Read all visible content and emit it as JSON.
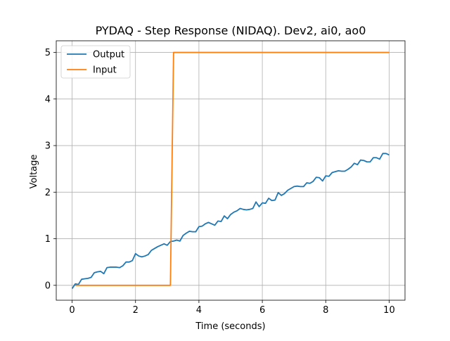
{
  "chart_data": {
    "type": "line",
    "title": "PYDAQ - Step Response (NIDAQ). Dev2, ai0, ao0",
    "xlabel": "Time (seconds)",
    "ylabel": "Voltage",
    "xlim": [
      -0.5,
      10.5
    ],
    "ylim": [
      -0.32,
      5.25
    ],
    "xticks": [
      0,
      2,
      4,
      6,
      8,
      10
    ],
    "xtick_labels": [
      "0",
      "2",
      "4",
      "6",
      "8",
      "10"
    ],
    "yticks": [
      0,
      1,
      2,
      3,
      4,
      5
    ],
    "ytick_labels": [
      "0",
      "1",
      "2",
      "3",
      "4",
      "5"
    ],
    "grid": true,
    "legend_position": "top-left",
    "series": [
      {
        "name": "Output",
        "color": "#1f77b4",
        "x": [
          0,
          0.1,
          0.2,
          0.3,
          0.4,
          0.5,
          0.6,
          0.7,
          0.8,
          0.9,
          1.0,
          1.1,
          1.2,
          1.3,
          1.4,
          1.5,
          1.6,
          1.7,
          1.8,
          1.9,
          2.0,
          2.1,
          2.2,
          2.3,
          2.4,
          2.5,
          2.6,
          2.7,
          2.8,
          2.9,
          3.0,
          3.1,
          3.2,
          3.3,
          3.4,
          3.5,
          3.6,
          3.7,
          3.8,
          3.9,
          4.0,
          4.1,
          4.2,
          4.3,
          4.4,
          4.5,
          4.6,
          4.7,
          4.8,
          4.9,
          5.0,
          5.1,
          5.2,
          5.3,
          5.4,
          5.5,
          5.6,
          5.7,
          5.8,
          5.9,
          6.0,
          6.1,
          6.2,
          6.3,
          6.4,
          6.5,
          6.6,
          6.7,
          6.8,
          6.9,
          7.0,
          7.1,
          7.2,
          7.3,
          7.4,
          7.5,
          7.6,
          7.7,
          7.8,
          7.9,
          8.0,
          8.1,
          8.2,
          8.3,
          8.4,
          8.5,
          8.6,
          8.7,
          8.8,
          8.9,
          9.0,
          9.1,
          9.2,
          9.3,
          9.4,
          9.5,
          9.6,
          9.7,
          9.8,
          9.9,
          10.0
        ],
        "values": [
          -0.07,
          0.03,
          0.02,
          0.13,
          0.14,
          0.15,
          0.17,
          0.27,
          0.29,
          0.3,
          0.25,
          0.38,
          0.39,
          0.39,
          0.39,
          0.38,
          0.42,
          0.5,
          0.5,
          0.53,
          0.68,
          0.63,
          0.61,
          0.63,
          0.66,
          0.75,
          0.79,
          0.83,
          0.86,
          0.89,
          0.86,
          0.94,
          0.95,
          0.97,
          0.95,
          1.07,
          1.12,
          1.16,
          1.15,
          1.15,
          1.26,
          1.27,
          1.32,
          1.35,
          1.32,
          1.29,
          1.38,
          1.37,
          1.49,
          1.43,
          1.52,
          1.57,
          1.6,
          1.65,
          1.63,
          1.62,
          1.63,
          1.65,
          1.79,
          1.69,
          1.77,
          1.76,
          1.87,
          1.82,
          1.83,
          1.99,
          1.93,
          1.97,
          2.04,
          2.08,
          2.12,
          2.13,
          2.12,
          2.12,
          2.2,
          2.19,
          2.23,
          2.32,
          2.31,
          2.24,
          2.35,
          2.34,
          2.42,
          2.44,
          2.46,
          2.45,
          2.45,
          2.49,
          2.54,
          2.62,
          2.59,
          2.69,
          2.68,
          2.65,
          2.65,
          2.74,
          2.74,
          2.71,
          2.83,
          2.83,
          2.8
        ]
      },
      {
        "name": "Input",
        "color": "#ff7f0e",
        "x": [
          0.1,
          3.1,
          3.2,
          10.0
        ],
        "values": [
          0,
          0,
          5,
          5
        ]
      }
    ]
  }
}
